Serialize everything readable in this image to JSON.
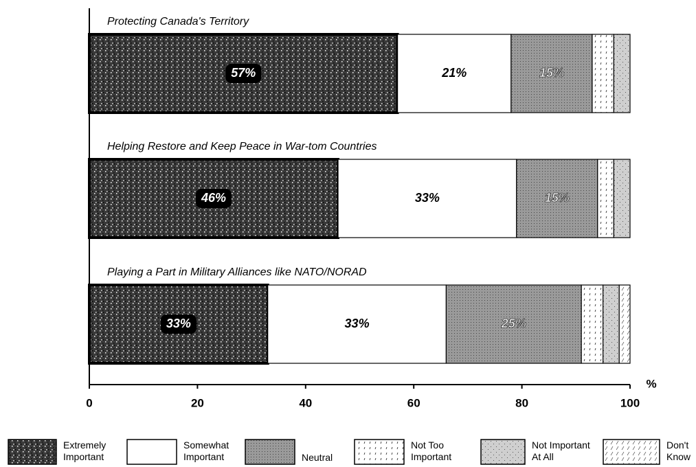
{
  "chart_data": {
    "type": "stacked-bar-horizontal",
    "categories": [
      "Protecting Canada's Territory",
      "Helping Restore and Keep Peace in War-tom Countries",
      "Playing a Part in Military Alliances like NATO/NORAD"
    ],
    "series": [
      {
        "name": "Extremely Important",
        "color": "#3a3a3a",
        "values": [
          57,
          46,
          33
        ],
        "value_labels": [
          "57%",
          "46%",
          "33%"
        ]
      },
      {
        "name": "Somewhat Important",
        "color": "#ffffff",
        "values": [
          21,
          33,
          33
        ],
        "value_labels": [
          "21%",
          "33%",
          "33%"
        ]
      },
      {
        "name": "Neutral",
        "color": "#9a9a9a",
        "values": [
          15,
          15,
          25
        ],
        "value_labels": [
          "15%",
          "15%",
          "25%"
        ]
      },
      {
        "name": "Not Too Important",
        "color": "#ffffff",
        "values": [
          4,
          3,
          4
        ]
      },
      {
        "name": "Not Important At All",
        "color": "#cfcfcf",
        "values": [
          3,
          3,
          3
        ]
      },
      {
        "name": "Don't Know",
        "color": "#ffffff",
        "values": [
          0,
          0,
          2
        ]
      }
    ],
    "xlim": [
      0,
      100
    ],
    "xticks": [
      0,
      20,
      40,
      60,
      80,
      100
    ],
    "x_axis_label": "%"
  }
}
